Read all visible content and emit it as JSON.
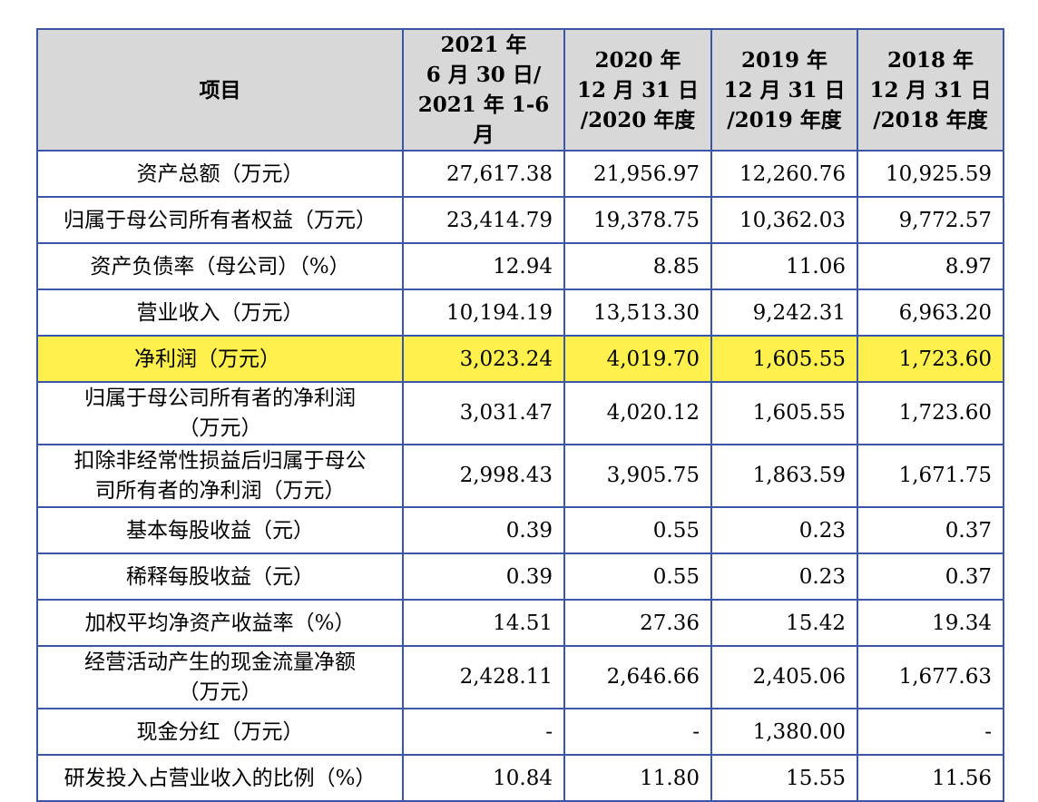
{
  "table": {
    "headers": [
      {
        "lines": [
          "项目"
        ]
      },
      {
        "lines": [
          "2021 年",
          "6 月 30 日/",
          "2021 年 1-6 月"
        ]
      },
      {
        "lines": [
          "2020 年",
          "12 月 31 日",
          "/2020 年度"
        ]
      },
      {
        "lines": [
          "2019 年",
          "12 月 31 日",
          "/2019 年度"
        ]
      },
      {
        "lines": [
          "2018 年",
          "12 月 31 日",
          "/2018 年度"
        ]
      }
    ],
    "rows": [
      {
        "label": [
          "资产总额（万元）"
        ],
        "values": [
          "27,617.38",
          "21,956.97",
          "12,260.76",
          "10,925.59"
        ]
      },
      {
        "label": [
          "归属于母公司所有者权益（万元）"
        ],
        "values": [
          "23,414.79",
          "19,378.75",
          "10,362.03",
          "9,772.57"
        ]
      },
      {
        "label": [
          "资产负债率（母公司）（%）"
        ],
        "values": [
          "12.94",
          "8.85",
          "11.06",
          "8.97"
        ]
      },
      {
        "label": [
          "营业收入（万元）"
        ],
        "values": [
          "10,194.19",
          "13,513.30",
          "9,242.31",
          "6,963.20"
        ]
      },
      {
        "label": [
          "净利润（万元）"
        ],
        "values": [
          "3,023.24",
          "4,019.70",
          "1,605.55",
          "1,723.60"
        ],
        "highlight": true
      },
      {
        "label": [
          "归属于母公司所有者的净利润",
          "（万元）"
        ],
        "values": [
          "3,031.47",
          "4,020.12",
          "1,605.55",
          "1,723.60"
        ]
      },
      {
        "label": [
          "扣除非经常性损益后归属于母公",
          "司所有者的净利润（万元）"
        ],
        "values": [
          "2,998.43",
          "3,905.75",
          "1,863.59",
          "1,671.75"
        ]
      },
      {
        "label": [
          "基本每股收益（元）"
        ],
        "values": [
          "0.39",
          "0.55",
          "0.23",
          "0.37"
        ]
      },
      {
        "label": [
          "稀释每股收益（元）"
        ],
        "values": [
          "0.39",
          "0.55",
          "0.23",
          "0.37"
        ]
      },
      {
        "label": [
          "加权平均净资产收益率（%）"
        ],
        "values": [
          "14.51",
          "27.36",
          "15.42",
          "19.34"
        ]
      },
      {
        "label": [
          "经营活动产生的现金流量净额",
          "（万元）"
        ],
        "values": [
          "2,428.11",
          "2,646.66",
          "2,405.06",
          "1,677.63"
        ]
      },
      {
        "label": [
          "现金分红（万元）"
        ],
        "values": [
          "-",
          "-",
          "1,380.00",
          "-"
        ]
      },
      {
        "label": [
          "研发投入占营业收入的比例（%）"
        ],
        "values": [
          "10.84",
          "11.80",
          "15.55",
          "11.56"
        ]
      }
    ],
    "highlight_color": "#fff04d",
    "border_color": "#3b55a8",
    "header_bg": "#d8d8d8"
  }
}
